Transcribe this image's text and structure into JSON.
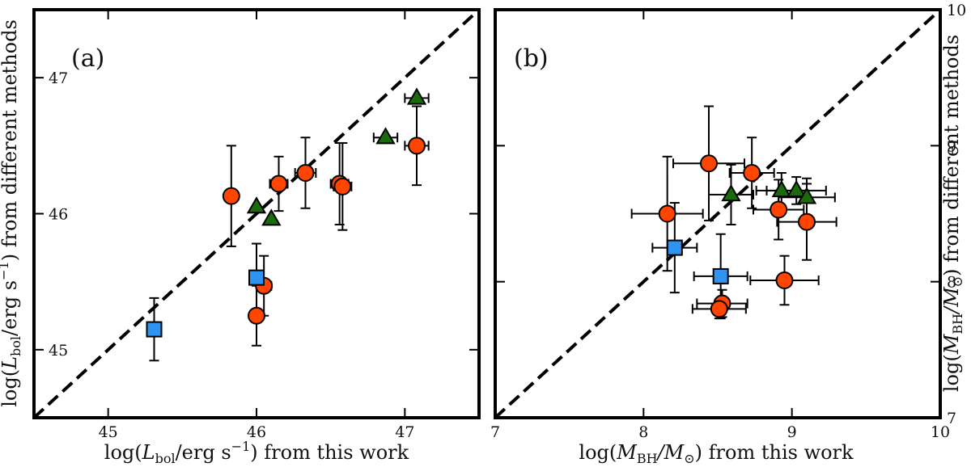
{
  "chart_data": [
    {
      "type": "scatter",
      "panel_label": "(a)",
      "xlabel_prefix": "log(",
      "xlabel_var": "L",
      "xlabel_sub": "bol",
      "xlabel_unit": "/erg s",
      "xlabel_sup": "−1",
      "xlabel_suffix": ") from this work",
      "ylabel_prefix": "log(",
      "ylabel_var": "L",
      "ylabel_sub": "bol",
      "ylabel_unit": "/erg s",
      "ylabel_sup": "−1",
      "ylabel_suffix": ") from different methods",
      "xlim": [
        44.5,
        47.5
      ],
      "ylim": [
        44.5,
        47.5
      ],
      "xticks": [
        45,
        46,
        47
      ],
      "yticks": [
        45,
        46,
        47
      ],
      "xtick_labels": [
        "45",
        "46",
        "47"
      ],
      "ytick_labels": [
        "45",
        "46",
        "47"
      ],
      "yticks_side": "left",
      "one_to_one_line": true,
      "series": [
        {
          "name": "circles",
          "marker": "circle",
          "color": "#FF4500",
          "points": [
            {
              "x": 45.83,
              "y": 46.13,
              "xerr": 0.0,
              "yerr": 0.37
            },
            {
              "x": 46.15,
              "y": 46.22,
              "xerr": 0.06,
              "yerr": 0.2
            },
            {
              "x": 46.33,
              "y": 46.3,
              "xerr": 0.07,
              "yerr": 0.26
            },
            {
              "x": 46.56,
              "y": 46.22,
              "xerr": 0.06,
              "yerr": 0.3
            },
            {
              "x": 46.58,
              "y": 46.2,
              "xerr": 0.06,
              "yerr": 0.32
            },
            {
              "x": 47.08,
              "y": 46.5,
              "xerr": 0.08,
              "yerr": 0.29
            },
            {
              "x": 46.05,
              "y": 45.47,
              "xerr": 0.05,
              "yerr": 0.22
            },
            {
              "x": 46.0,
              "y": 45.25,
              "xerr": 0.0,
              "yerr": 0.22
            }
          ]
        },
        {
          "name": "triangles",
          "marker": "triangle",
          "color": "#1A6B0A",
          "points": [
            {
              "x": 46.0,
              "y": 46.05,
              "xerr": 0.0,
              "yerr": 0.0
            },
            {
              "x": 46.1,
              "y": 45.96,
              "xerr": 0.0,
              "yerr": 0.0
            },
            {
              "x": 46.87,
              "y": 46.56,
              "xerr": 0.08,
              "yerr": 0.0
            },
            {
              "x": 47.08,
              "y": 46.85,
              "xerr": 0.08,
              "yerr": 0.0
            }
          ]
        },
        {
          "name": "squares",
          "marker": "square",
          "color": "#2F93F0",
          "points": [
            {
              "x": 45.31,
              "y": 45.15,
              "xerr": 0.0,
              "yerr": 0.23
            },
            {
              "x": 46.0,
              "y": 45.53,
              "xerr": 0.0,
              "yerr": 0.25
            }
          ]
        }
      ]
    },
    {
      "type": "scatter",
      "panel_label": "(b)",
      "xlabel_prefix": "log(",
      "xlabel_var": "M",
      "xlabel_sub": "BH",
      "xlabel_unit": "/M",
      "xlabel_unit_sub": "⊙",
      "xlabel_suffix": ") from this work",
      "ylabel_prefix": "log(",
      "ylabel_var": "M",
      "ylabel_sub": "BH",
      "ylabel_unit": "/M",
      "ylabel_unit_sub": "⊙",
      "ylabel_suffix": ") from different methods",
      "xlim": [
        7,
        10
      ],
      "ylim": [
        7,
        10
      ],
      "xticks": [
        7,
        8,
        9,
        10
      ],
      "yticks": [
        7,
        8,
        9,
        10
      ],
      "xtick_labels": [
        "7",
        "8",
        "9",
        "10"
      ],
      "ytick_labels": [
        "7",
        "8",
        "9",
        "10"
      ],
      "yticks_side": "right",
      "one_to_one_line": true,
      "series": [
        {
          "name": "circles",
          "marker": "circle",
          "color": "#FF4500",
          "points": [
            {
              "x": 8.44,
              "y": 8.87,
              "xerr": 0.24,
              "yerr": 0.42
            },
            {
              "x": 8.73,
              "y": 8.8,
              "xerr": 0.15,
              "yerr": 0.26
            },
            {
              "x": 8.16,
              "y": 8.5,
              "xerr": 0.24,
              "yerr": 0.42
            },
            {
              "x": 8.91,
              "y": 8.53,
              "xerr": 0.17,
              "yerr": 0.22
            },
            {
              "x": 9.1,
              "y": 8.44,
              "xerr": 0.2,
              "yerr": 0.28
            },
            {
              "x": 8.95,
              "y": 8.01,
              "xerr": 0.23,
              "yerr": 0.18
            },
            {
              "x": 8.53,
              "y": 7.84,
              "xerr": 0.17,
              "yerr": 0.1
            },
            {
              "x": 8.51,
              "y": 7.8,
              "xerr": 0.18,
              "yerr": 0.07
            }
          ]
        },
        {
          "name": "triangles",
          "marker": "triangle",
          "color": "#1A6B0A",
          "points": [
            {
              "x": 8.59,
              "y": 8.64,
              "xerr": 0.15,
              "yerr": 0.22
            },
            {
              "x": 8.93,
              "y": 8.67,
              "xerr": 0.17,
              "yerr": 0.13
            },
            {
              "x": 9.03,
              "y": 8.67,
              "xerr": 0.2,
              "yerr": 0.1
            },
            {
              "x": 9.1,
              "y": 8.62,
              "xerr": 0.19,
              "yerr": 0.14
            }
          ]
        },
        {
          "name": "squares",
          "marker": "square",
          "color": "#2F93F0",
          "points": [
            {
              "x": 8.21,
              "y": 8.25,
              "xerr": 0.15,
              "yerr": 0.33
            },
            {
              "x": 8.52,
              "y": 8.04,
              "xerr": 0.18,
              "yerr": 0.31
            }
          ]
        }
      ]
    }
  ]
}
